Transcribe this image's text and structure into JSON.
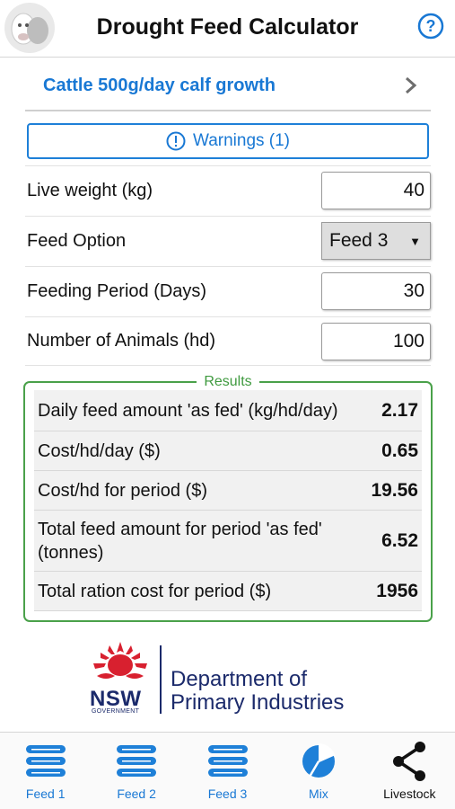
{
  "header": {
    "title": "Drought Feed Calculator",
    "help_icon": "help-icon"
  },
  "profile": {
    "label": "Cattle 500g/day calf growth"
  },
  "warnings": {
    "label": "Warnings (1)"
  },
  "inputs": {
    "live_weight": {
      "label": "Live weight (kg)",
      "value": "40"
    },
    "feed_option": {
      "label": "Feed Option",
      "value": "Feed 3"
    },
    "feeding_period": {
      "label": "Feeding Period (Days)",
      "value": "30"
    },
    "num_animals": {
      "label": "Number of Animals (hd)",
      "value": "100"
    }
  },
  "results": {
    "title": "Results",
    "rows": [
      {
        "label": "Daily feed amount 'as fed' (kg/hd/day)",
        "value": "2.17"
      },
      {
        "label": "Cost/hd/day ($)",
        "value": "0.65"
      },
      {
        "label": "Cost/hd for period ($)",
        "value": "19.56"
      },
      {
        "label": "Total feed amount for period 'as fed' (tonnes)",
        "value": "6.52"
      },
      {
        "label": "Total ration cost for period ($)",
        "value": "1956"
      }
    ]
  },
  "department": {
    "nsw": "NSW",
    "government": "GOVERNMENT",
    "line1": "Department of",
    "line2": "Primary Industries"
  },
  "nav": {
    "items": [
      {
        "label": "Feed 1",
        "icon": "feed-list-icon"
      },
      {
        "label": "Feed 2",
        "icon": "feed-list-icon"
      },
      {
        "label": "Feed 3",
        "icon": "feed-list-icon"
      },
      {
        "label": "Mix",
        "icon": "pie-chart-icon"
      },
      {
        "label": "Livestock",
        "icon": "share-icon"
      }
    ]
  },
  "colors": {
    "accent_blue": "#1978d4",
    "results_green": "#4aa14a",
    "nsw_navy": "#1b2a6b",
    "waratah_red": "#d8202f"
  }
}
